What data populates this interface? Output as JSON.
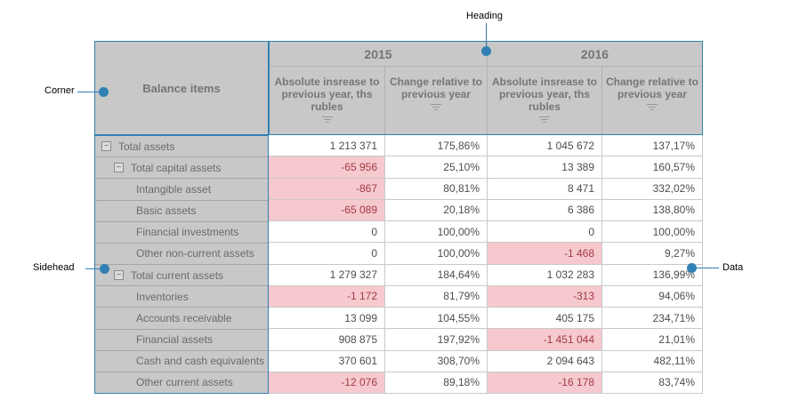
{
  "callouts": {
    "heading": "Heading",
    "corner": "Corner",
    "sidehead": "Sidehead",
    "data": "Data"
  },
  "table": {
    "corner_label": "Balance items",
    "columns": [
      {
        "year": "2015",
        "measures": [
          {
            "label": "Absolute insrease to previous year, ths rubles",
            "filter_icon": "filter-icon"
          },
          {
            "label": "Change relative to previous year",
            "filter_icon": "filter-icon"
          }
        ]
      },
      {
        "year": "2016",
        "measures": [
          {
            "label": "Absolute insrease to previous year, ths rubles",
            "filter_icon": "filter-icon"
          },
          {
            "label": "Change relative to previous year",
            "filter_icon": "filter-icon"
          }
        ]
      }
    ],
    "rows": [
      {
        "label": "Total assets",
        "level": 0,
        "collapsible": true,
        "values": [
          "1 213 371",
          "175,86%",
          "1 045 672",
          "137,17%"
        ]
      },
      {
        "label": "Total capital assets",
        "level": 1,
        "collapsible": true,
        "values": [
          "-65 956",
          "25,10%",
          "13 389",
          "160,57%"
        ]
      },
      {
        "label": "Intangible asset",
        "level": 2,
        "collapsible": false,
        "values": [
          "-867",
          "80,81%",
          "8 471",
          "332,02%"
        ]
      },
      {
        "label": "Basic assets",
        "level": 2,
        "collapsible": false,
        "values": [
          "-65 089",
          "20,18%",
          "6 386",
          "138,80%"
        ]
      },
      {
        "label": "Financial investments",
        "level": 2,
        "collapsible": false,
        "values": [
          "0",
          "100,00%",
          "0",
          "100,00%"
        ]
      },
      {
        "label": "Other non-current assets",
        "level": 2,
        "collapsible": false,
        "values": [
          "0",
          "100,00%",
          "-1 468",
          "9,27%"
        ]
      },
      {
        "label": "Total current assets",
        "level": 1,
        "collapsible": true,
        "values": [
          "1 279 327",
          "184,64%",
          "1 032 283",
          "136,99%"
        ]
      },
      {
        "label": "Inventories",
        "level": 2,
        "collapsible": false,
        "values": [
          "-1 172",
          "81,79%",
          "-313",
          "94,06%"
        ]
      },
      {
        "label": "Accounts receivable",
        "level": 2,
        "collapsible": false,
        "values": [
          "13 099",
          "104,55%",
          "405 175",
          "234,71%"
        ]
      },
      {
        "label": "Financial assets",
        "level": 2,
        "collapsible": false,
        "values": [
          "908 875",
          "197,92%",
          "-1 451 044",
          "21,01%"
        ]
      },
      {
        "label": "Cash and cash equivalents",
        "level": 2,
        "collapsible": false,
        "values": [
          "370 601",
          "308,70%",
          "2 094 643",
          "482,11%"
        ]
      },
      {
        "label": "Other current assets",
        "level": 2,
        "collapsible": false,
        "values": [
          "-12 076",
          "89,18%",
          "-16 178",
          "83,74%"
        ]
      }
    ],
    "collapse_glyph": "−"
  },
  "colors": {
    "accent_blue": "#3180b3",
    "header_bg": "#c8c8c8",
    "negative_bg": "#f6c9ce",
    "negative_text": "#a13a45",
    "grid_line": "#c9c9c9"
  }
}
